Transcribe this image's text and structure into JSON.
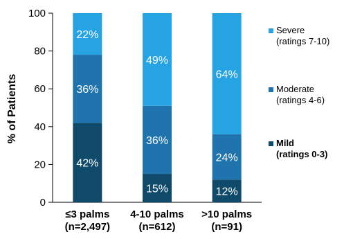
{
  "chart_data": {
    "type": "bar",
    "stacked": true,
    "ylabel": "% of Patients",
    "ylim": [
      0,
      100
    ],
    "yticks": [
      0,
      20,
      40,
      60,
      80,
      100
    ],
    "categories": [
      [
        "≤3 palms",
        "(n=2,497)"
      ],
      [
        "4-10 palms",
        "(n=612)"
      ],
      [
        ">10 palms",
        "(n=91)"
      ]
    ],
    "series": [
      {
        "name": "Mild",
        "sublabel": "(ratings 0-3)",
        "bold": true,
        "color": "#0f4a6b",
        "values": [
          42,
          15,
          12
        ],
        "labels": [
          "42%",
          "15%",
          "12%"
        ]
      },
      {
        "name": "Moderate",
        "sublabel": "(ratings 4-6)",
        "bold": false,
        "color": "#1f74ad",
        "values": [
          36,
          36,
          24
        ],
        "labels": [
          "36%",
          "36%",
          "24%"
        ]
      },
      {
        "name": "Severe",
        "sublabel": "(ratings 7-10)",
        "bold": false,
        "color": "#25a3e3",
        "values": [
          22,
          49,
          64
        ],
        "labels": [
          "22%",
          "49%",
          "64%"
        ]
      }
    ],
    "legend_order": [
      "Severe",
      "Moderate",
      "Mild"
    ],
    "legend_position": "right",
    "grid": false
  }
}
